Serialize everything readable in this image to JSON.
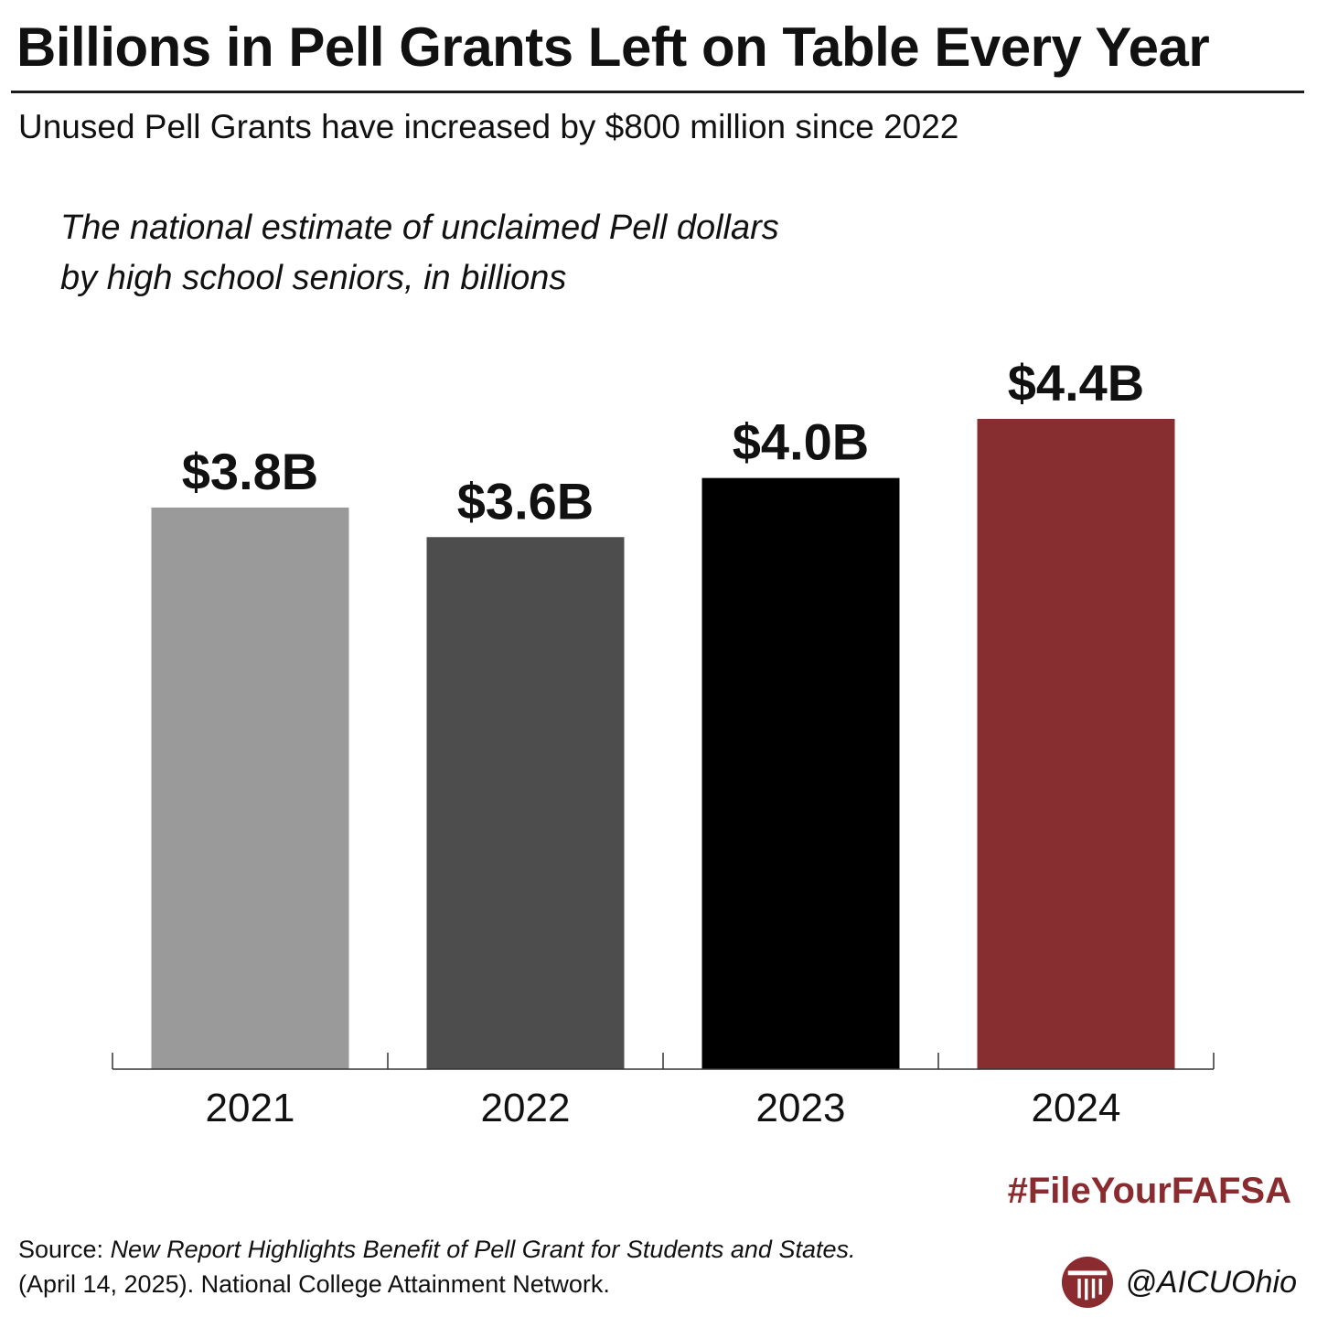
{
  "header": {
    "title": "Billions in Pell Grants Left on Table Every Year",
    "subtitle": "Unused Pell Grants have increased by $800 million since 2022"
  },
  "chart_data": {
    "type": "bar",
    "measure_label": "The national estimate of unclaimed Pell dollars by high school seniors, in billions",
    "categories": [
      "2021",
      "2022",
      "2023",
      "2024"
    ],
    "values": [
      3.8,
      3.6,
      4.0,
      4.4
    ],
    "data_labels": [
      "$3.8B",
      "$3.6B",
      "$4.0B",
      "$4.4B"
    ],
    "bar_colors": [
      "#9a9a9a",
      "#4d4d4d",
      "#000000",
      "#872e30"
    ],
    "ylim": [
      0,
      4.4
    ],
    "grid": false,
    "legend": "none"
  },
  "footer": {
    "hashtag": "#FileYourFAFSA",
    "source_prefix": "Source: ",
    "source_title": "New Report Highlights Benefit of Pell Grant for Students and States.",
    "source_rest": " (April 14, 2025). National College Attainment Network.",
    "brand_handle": "@AICUOhio",
    "brand_color": "#8a2c2f",
    "brand_icon": "aicu-column-logo-icon"
  }
}
